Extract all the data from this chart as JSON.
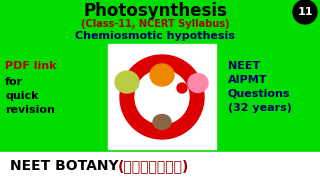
{
  "bg_color": "#00dd00",
  "title": "Photosynthesis",
  "subtitle1": "(Class-11, NCERT Syllabus)",
  "subtitle2": "Chemiosmotic hypothesis",
  "left_line1": "PDF link",
  "left_line2": "for",
  "left_line3": "quick",
  "left_line4": "revision",
  "right_line1": "NEET",
  "right_line2": "AIPMT",
  "right_line3": "Questions",
  "right_line4": "(32 years)",
  "bottom_neet": "NEET BOTANY ",
  "bottom_tamil": "(தமிழில்)",
  "number": "11",
  "title_color": "#000000",
  "subtitle1_color": "#aa0000",
  "subtitle2_color": "#000066",
  "left_color": "#bb0000",
  "left_for_color": "#000000",
  "right_color": "#000066",
  "bottom_bg": "#ffffff",
  "bottom_text_color": "#000000",
  "bottom_tamil_color": "#990000",
  "number_bg": "#000000",
  "number_color": "#ffffff",
  "ring_color": "#dd0000",
  "blob_yg": "#bbcc44",
  "blob_orange": "#ee8800",
  "blob_pink": "#ff88aa",
  "blob_bottom": "#886644",
  "diag_bg": "#ffffff"
}
